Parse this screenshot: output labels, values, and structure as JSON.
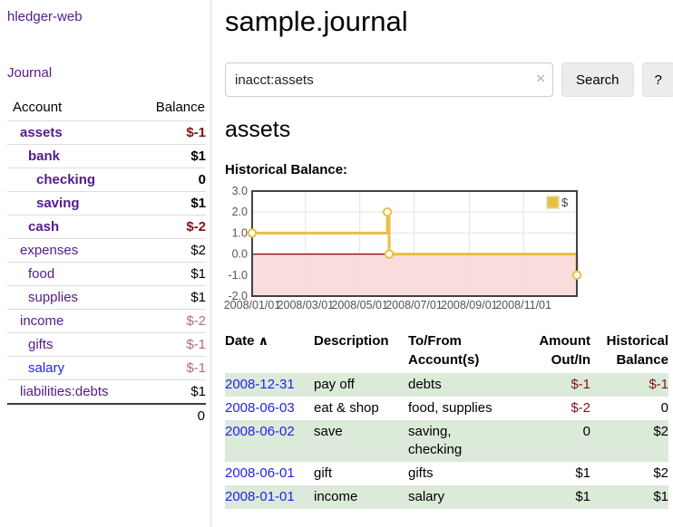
{
  "app": {
    "brand": "hledger-web"
  },
  "sidebar": {
    "journal_link": "Journal",
    "accounts": {
      "header_account": "Account",
      "header_balance": "Balance",
      "rows": [
        {
          "name": "assets",
          "depth": 0,
          "bold": true,
          "balance": "$-1",
          "balance_style": "neg-strong"
        },
        {
          "name": "bank",
          "depth": 1,
          "bold": true,
          "balance": "$1",
          "balance_style": "pos-strong"
        },
        {
          "name": "checking",
          "depth": 2,
          "bold": true,
          "balance": "0",
          "balance_style": "pos-strong"
        },
        {
          "name": "saving",
          "depth": 2,
          "bold": true,
          "balance": "$1",
          "balance_style": "pos-strong"
        },
        {
          "name": "cash",
          "depth": 1,
          "bold": true,
          "balance": "$-2",
          "balance_style": "neg-strong"
        },
        {
          "name": "expenses",
          "depth": 0,
          "bold": false,
          "balance": "$2",
          "balance_style": "pos"
        },
        {
          "name": "food",
          "depth": 1,
          "bold": false,
          "balance": "$1",
          "balance_style": "pos"
        },
        {
          "name": "supplies",
          "depth": 1,
          "bold": false,
          "balance": "$1",
          "balance_style": "pos"
        },
        {
          "name": "income",
          "depth": 0,
          "bold": false,
          "balance": "$-2",
          "balance_style": "neg"
        },
        {
          "name": "gifts",
          "depth": 1,
          "bold": false,
          "balance": "$-1",
          "balance_style": "neg"
        },
        {
          "name": "salary",
          "depth": 1,
          "bold": false,
          "link_color": "blue",
          "balance": "$-1",
          "balance_style": "neg"
        },
        {
          "name": "liabilities:debts",
          "depth": 0,
          "bold": false,
          "balance": "$1",
          "balance_style": "pos"
        }
      ],
      "total": "0"
    }
  },
  "main": {
    "title": "sample.journal",
    "search": {
      "value": "inacct:assets",
      "clear_icon": "×",
      "button": "Search",
      "help_button": "?"
    },
    "account_heading": "assets"
  },
  "chart_data": {
    "type": "line",
    "style": "step-after",
    "title": "Historical Balance:",
    "legend": {
      "label": "$",
      "color": "#e6bf45",
      "position": "top-right"
    },
    "series": [
      {
        "name": "$",
        "color": "#e6bf45",
        "points": [
          {
            "date": "2008-01-01",
            "value": 1
          },
          {
            "date": "2008-06-01",
            "value": 2
          },
          {
            "date": "2008-06-03",
            "value": 0
          },
          {
            "date": "2008-12-31",
            "value": -1
          }
        ]
      }
    ],
    "xlim": [
      "2008-01-01",
      "2008-12-31"
    ],
    "ylim": [
      -2,
      3
    ],
    "yticks": [
      "3.0",
      "2.0",
      "1.0",
      "0.0",
      "-1.0",
      "-2.0"
    ],
    "xticks": [
      "2008/01/01",
      "2008/03/01",
      "2008/05/01",
      "2008/07/01",
      "2008/09/01",
      "2008/11/01"
    ],
    "grid": true,
    "negative_area_color": "#f9dcdc",
    "zero_line_color": "#8b0000",
    "border_color": "#434343",
    "grid_color": "#e3e3e3",
    "tick_text_color": "#545454"
  },
  "register": {
    "headers": [
      "Date",
      "Description",
      "To/From Account(s)",
      "Amount Out/In",
      "Historical Balance"
    ],
    "sort_icon": "∧",
    "rows": [
      {
        "date": "2008-12-31",
        "description": "pay off",
        "accounts": "debts",
        "amount": "$-1",
        "amount_neg": true,
        "balance": "$-1",
        "balance_neg": true
      },
      {
        "date": "2008-06-03",
        "description": "eat & shop",
        "accounts": "food, supplies",
        "amount": "$-2",
        "amount_neg": true,
        "balance": "0",
        "balance_neg": false
      },
      {
        "date": "2008-06-02",
        "description": "save",
        "accounts": "saving, checking",
        "amount": "0",
        "amount_neg": false,
        "balance": "$2",
        "balance_neg": false
      },
      {
        "date": "2008-06-01",
        "description": "gift",
        "accounts": "gifts",
        "amount": "$1",
        "amount_neg": false,
        "balance": "$2",
        "balance_neg": false
      },
      {
        "date": "2008-01-01",
        "description": "income",
        "accounts": "salary",
        "amount": "$1",
        "amount_neg": false,
        "balance": "$1",
        "balance_neg": false
      }
    ]
  }
}
